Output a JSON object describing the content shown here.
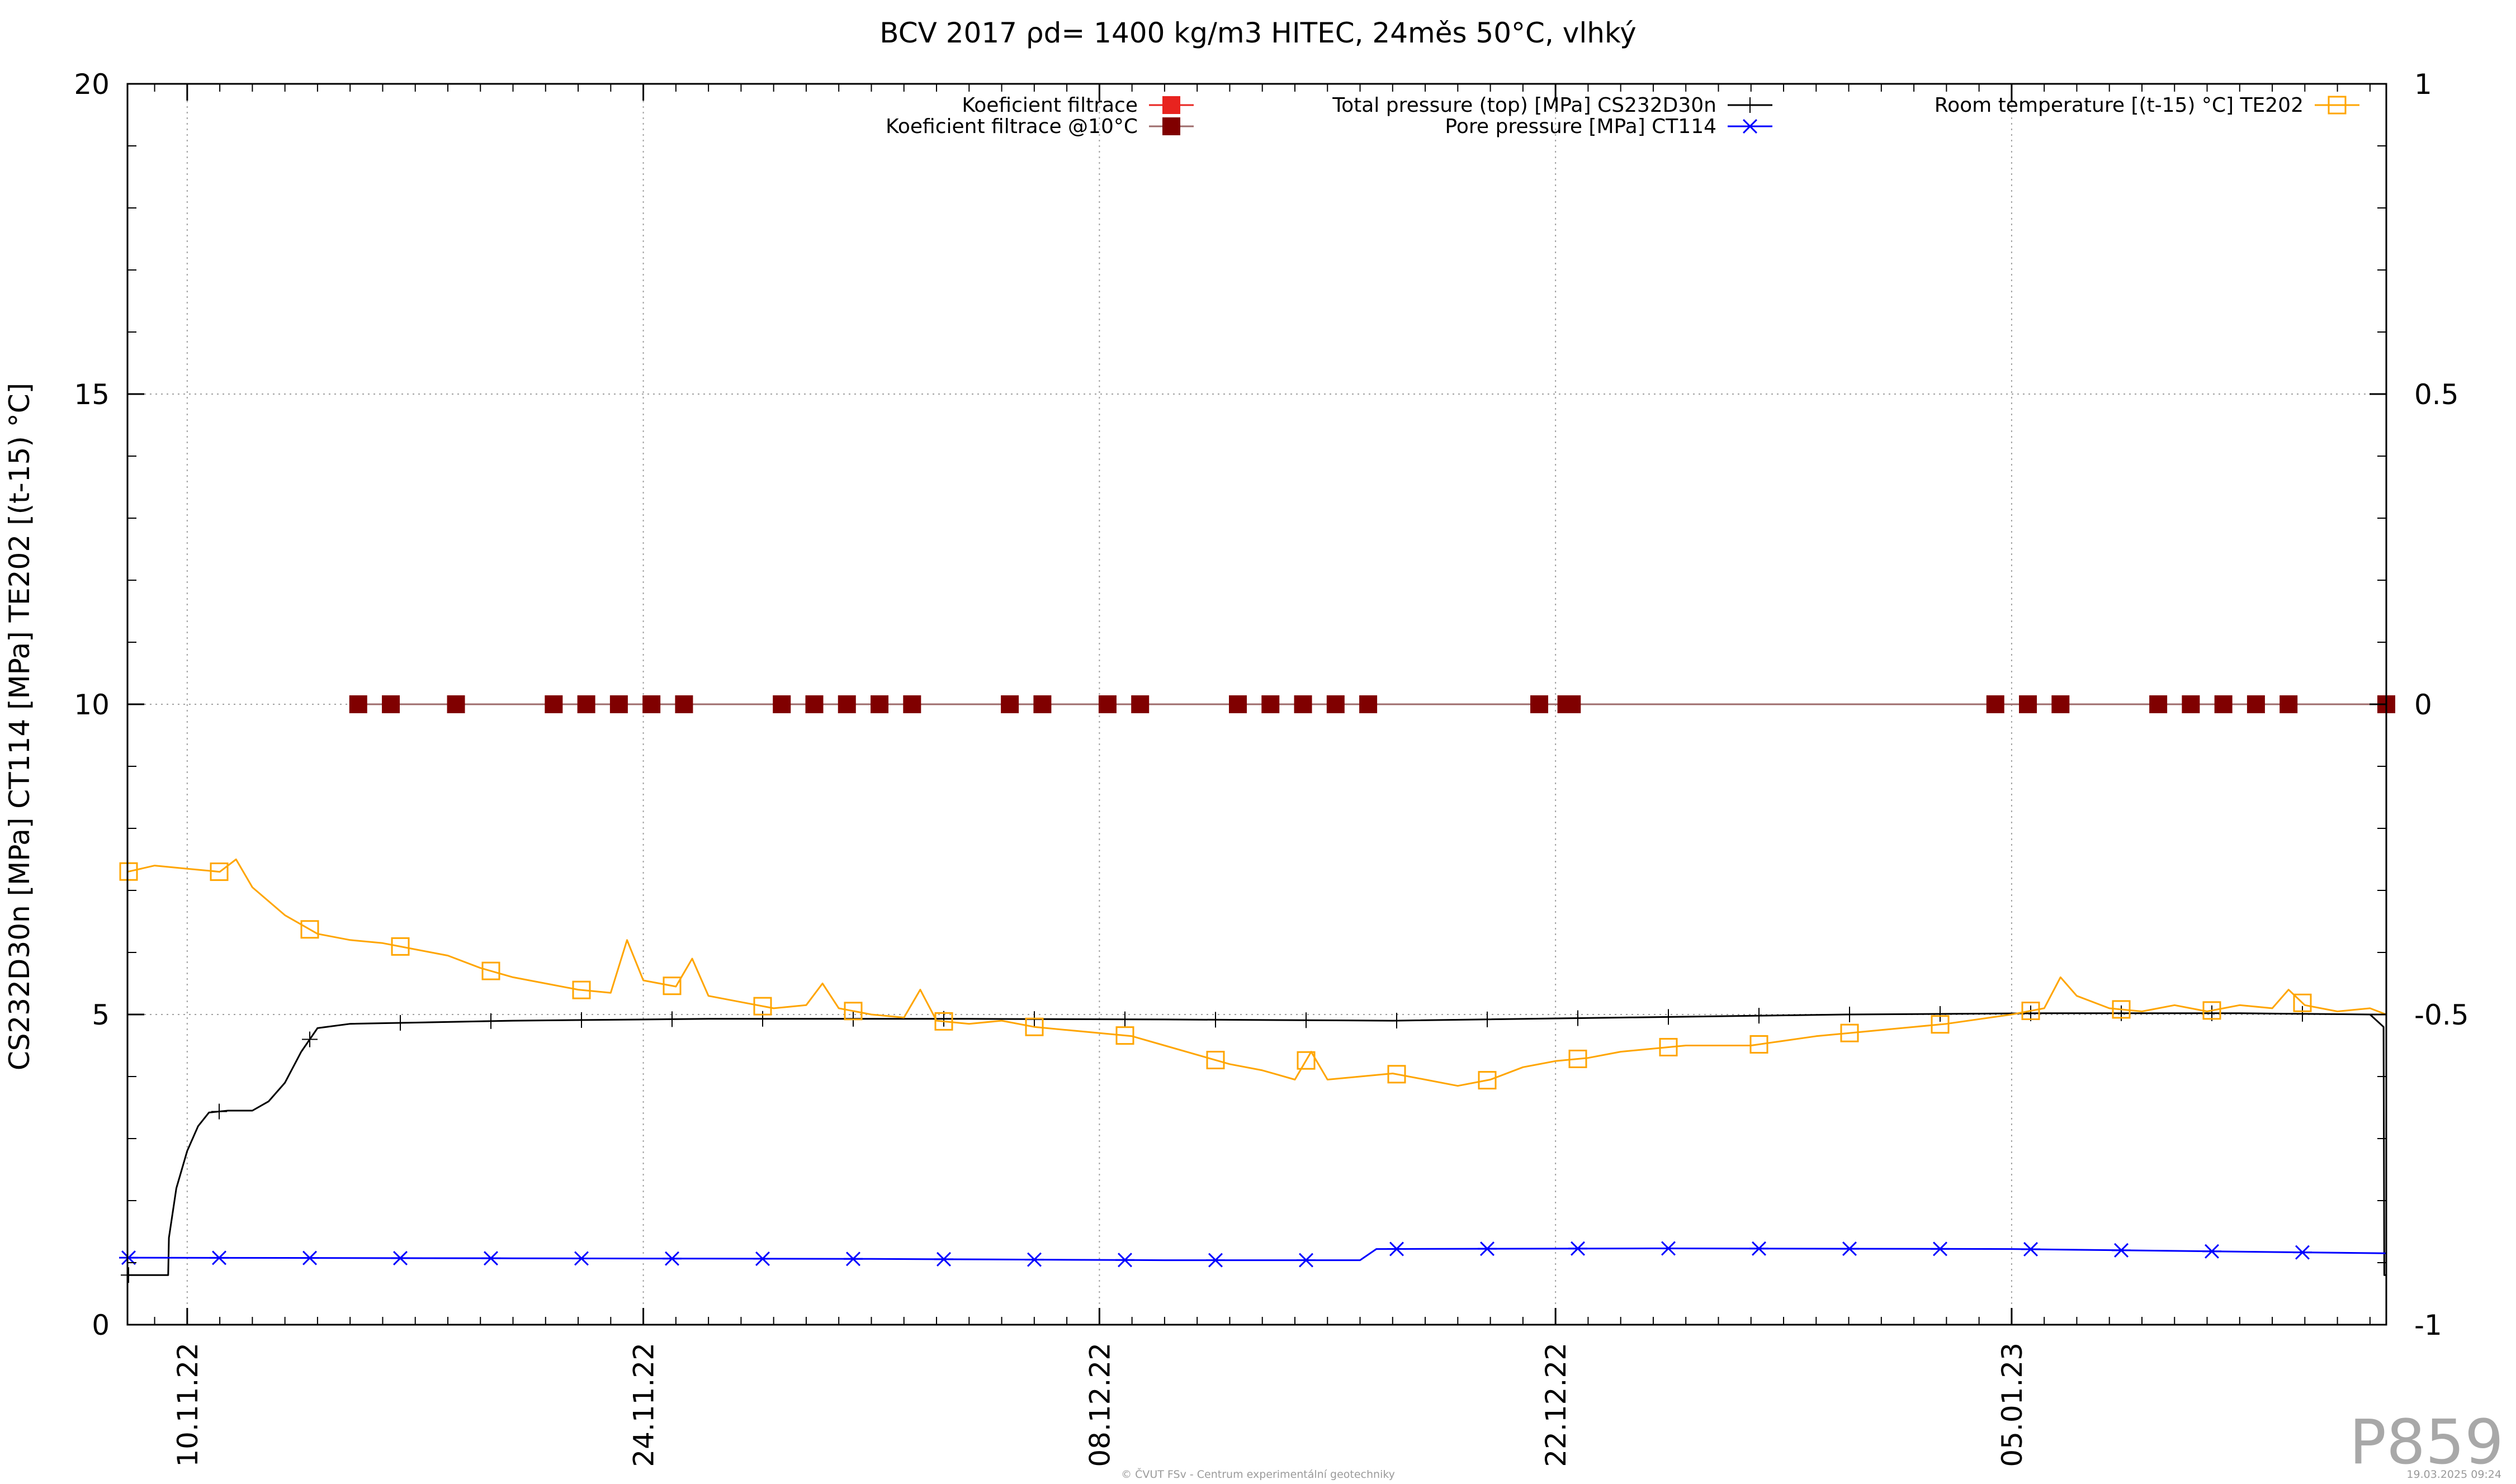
{
  "chart_data": {
    "type": "line",
    "title": "BCV 2017 ρd= 1400 kg/m3 HITEC, 24měs 50°C, vlhký",
    "ylabel": "CS232D30n [MPa] CT114 [MPa] TE202 [(t-15) °C]",
    "xlabel": "",
    "x_ticks": [
      "10.11.22",
      "24.11.22",
      "08.12.22",
      "22.12.22",
      "05.01.23"
    ],
    "x_range": [
      "2022-11-08T04:00",
      "2023-01-16T12:00"
    ],
    "ylim": [
      0,
      20
    ],
    "y2lim": [
      -1,
      1
    ],
    "yticks": [
      0,
      5,
      10,
      15,
      20
    ],
    "y2ticks": [
      "-1",
      "-0.5",
      "0",
      "0.5",
      "1"
    ],
    "grid": true,
    "legend_position": "top",
    "series": [
      {
        "name": "Koeficient filtrace",
        "axis": "y2",
        "style": "red-filled-square",
        "color": "#e8231f",
        "points": []
      },
      {
        "name": "Koeficient filtrace @10°C",
        "axis": "y2",
        "style": "darkred-filled-square",
        "color": "#800000",
        "points": [
          [
            "2022-11-15T06:00",
            0
          ],
          [
            "2022-11-16T06:00",
            0
          ],
          [
            "2022-11-18T06:00",
            0
          ],
          [
            "2022-11-21T06:00",
            0
          ],
          [
            "2022-11-22T06:00",
            0
          ],
          [
            "2022-11-23T06:00",
            0
          ],
          [
            "2022-11-24T06:00",
            0
          ],
          [
            "2022-11-25T06:00",
            0
          ],
          [
            "2022-11-28T06:00",
            0
          ],
          [
            "2022-11-29T06:00",
            0
          ],
          [
            "2022-11-30T06:00",
            0
          ],
          [
            "2022-12-01T06:00",
            0
          ],
          [
            "2022-12-02T06:00",
            0
          ],
          [
            "2022-12-05T06:00",
            0
          ],
          [
            "2022-12-06T06:00",
            0
          ],
          [
            "2022-12-08T06:00",
            0
          ],
          [
            "2022-12-09T06:00",
            0
          ],
          [
            "2022-12-12T06:00",
            0
          ],
          [
            "2022-12-13T06:00",
            0
          ],
          [
            "2022-12-14T06:00",
            0
          ],
          [
            "2022-12-15T06:00",
            0
          ],
          [
            "2022-12-16T06:00",
            0
          ],
          [
            "2022-12-21T12:00",
            0
          ],
          [
            "2022-12-22T08:00",
            0
          ],
          [
            "2022-12-22T12:00",
            0
          ],
          [
            "2023-01-04T12:00",
            0
          ],
          [
            "2023-01-05T12:00",
            0
          ],
          [
            "2023-01-06T12:00",
            0
          ],
          [
            "2023-01-09T12:00",
            0
          ],
          [
            "2023-01-10T12:00",
            0
          ],
          [
            "2023-01-11T12:00",
            0
          ],
          [
            "2023-01-12T12:00",
            0
          ],
          [
            "2023-01-13T12:00",
            0
          ],
          [
            "2023-01-16T12:00",
            0
          ]
        ]
      },
      {
        "name": "Total pressure (top) [MPa] CS232D30n",
        "axis": "y",
        "style": "black-line-plus",
        "color": "#000000",
        "points": [
          [
            "2022-11-08T04:00",
            0.8
          ],
          [
            "2022-11-09T10:00",
            0.8
          ],
          [
            "2022-11-09T10:30",
            1.4
          ],
          [
            "2022-11-09T16:00",
            2.2
          ],
          [
            "2022-11-10T00:00",
            2.8
          ],
          [
            "2022-11-10T08:00",
            3.2
          ],
          [
            "2022-11-10T16:00",
            3.42
          ],
          [
            "2022-11-11T06:00",
            3.45
          ],
          [
            "2022-11-12T00:00",
            3.45
          ],
          [
            "2022-11-12T12:00",
            3.6
          ],
          [
            "2022-11-13T00:00",
            3.9
          ],
          [
            "2022-11-13T12:00",
            4.4
          ],
          [
            "2022-11-14T00:00",
            4.78
          ],
          [
            "2022-11-15T00:00",
            4.85
          ],
          [
            "2022-11-20T00:00",
            4.9
          ],
          [
            "2022-11-26T00:00",
            4.93
          ],
          [
            "2022-12-04T00:00",
            4.93
          ],
          [
            "2022-12-10T00:00",
            4.92
          ],
          [
            "2022-12-17T00:00",
            4.9
          ],
          [
            "2022-12-24T00:00",
            4.95
          ],
          [
            "2022-12-31T00:00",
            5.0
          ],
          [
            "2023-01-06T00:00",
            5.02
          ],
          [
            "2023-01-12T00:00",
            5.02
          ],
          [
            "2023-01-16T00:00",
            5.0
          ],
          [
            "2023-01-16T10:00",
            4.8
          ],
          [
            "2023-01-16T10:30",
            0.8
          ],
          [
            "2023-01-16T12:00",
            0.8
          ]
        ]
      },
      {
        "name": "Pore pressure [MPa] CT114",
        "axis": "y",
        "style": "blue-line-asterisk",
        "color": "#0000ff",
        "points": [
          [
            "2022-11-08T04:00",
            1.08
          ],
          [
            "2022-11-20T00:00",
            1.07
          ],
          [
            "2022-12-01T00:00",
            1.06
          ],
          [
            "2022-12-10T00:00",
            1.04
          ],
          [
            "2022-12-16T00:00",
            1.04
          ],
          [
            "2022-12-16T12:00",
            1.22
          ],
          [
            "2022-12-25T00:00",
            1.23
          ],
          [
            "2023-01-05T00:00",
            1.22
          ],
          [
            "2023-01-16T12:00",
            1.15
          ]
        ]
      },
      {
        "name": "Room temperature [(t-15) °C] TE202",
        "axis": "y",
        "style": "orange-line-open-square",
        "color": "#ffa500",
        "points": [
          [
            "2022-11-08T04:00",
            7.3
          ],
          [
            "2022-11-09T00:00",
            7.4
          ],
          [
            "2022-11-10T00:00",
            7.35
          ],
          [
            "2022-11-11T00:00",
            7.3
          ],
          [
            "2022-11-11T12:00",
            7.5
          ],
          [
            "2022-11-12T00:00",
            7.05
          ],
          [
            "2022-11-13T00:00",
            6.6
          ],
          [
            "2022-11-14T00:00",
            6.3
          ],
          [
            "2022-11-15T00:00",
            6.2
          ],
          [
            "2022-11-16T00:00",
            6.15
          ],
          [
            "2022-11-17T00:00",
            6.05
          ],
          [
            "2022-11-18T00:00",
            5.95
          ],
          [
            "2022-11-19T00:00",
            5.75
          ],
          [
            "2022-11-20T00:00",
            5.6
          ],
          [
            "2022-11-21T00:00",
            5.5
          ],
          [
            "2022-11-22T00:00",
            5.4
          ],
          [
            "2022-11-23T00:00",
            5.35
          ],
          [
            "2022-11-23T12:00",
            6.2
          ],
          [
            "2022-11-24T00:00",
            5.55
          ],
          [
            "2022-11-25T00:00",
            5.45
          ],
          [
            "2022-11-25T12:00",
            5.9
          ],
          [
            "2022-11-26T00:00",
            5.3
          ],
          [
            "2022-11-27T00:00",
            5.2
          ],
          [
            "2022-11-28T00:00",
            5.1
          ],
          [
            "2022-11-29T00:00",
            5.15
          ],
          [
            "2022-11-29T12:00",
            5.5
          ],
          [
            "2022-11-30T00:00",
            5.1
          ],
          [
            "2022-12-01T00:00",
            5.0
          ],
          [
            "2022-12-02T00:00",
            4.95
          ],
          [
            "2022-12-02T12:00",
            5.4
          ],
          [
            "2022-12-03T00:00",
            4.9
          ],
          [
            "2022-12-04T00:00",
            4.85
          ],
          [
            "2022-12-05T00:00",
            4.9
          ],
          [
            "2022-12-06T00:00",
            4.8
          ],
          [
            "2022-12-07T00:00",
            4.75
          ],
          [
            "2022-12-08T00:00",
            4.7
          ],
          [
            "2022-12-09T00:00",
            4.65
          ],
          [
            "2022-12-10T00:00",
            4.5
          ],
          [
            "2022-12-11T00:00",
            4.35
          ],
          [
            "2022-12-12T00:00",
            4.2
          ],
          [
            "2022-12-13T00:00",
            4.1
          ],
          [
            "2022-12-14T00:00",
            3.95
          ],
          [
            "2022-12-14T12:00",
            4.4
          ],
          [
            "2022-12-15T00:00",
            3.95
          ],
          [
            "2022-12-16T00:00",
            4.0
          ],
          [
            "2022-12-17T00:00",
            4.05
          ],
          [
            "2022-12-18T00:00",
            3.95
          ],
          [
            "2022-12-19T00:00",
            3.85
          ],
          [
            "2022-12-20T00:00",
            3.95
          ],
          [
            "2022-12-21T00:00",
            4.15
          ],
          [
            "2022-12-22T00:00",
            4.25
          ],
          [
            "2022-12-23T00:00",
            4.3
          ],
          [
            "2022-12-24T00:00",
            4.4
          ],
          [
            "2022-12-26T00:00",
            4.5
          ],
          [
            "2022-12-28T00:00",
            4.5
          ],
          [
            "2022-12-30T00:00",
            4.65
          ],
          [
            "2023-01-01T00:00",
            4.75
          ],
          [
            "2023-01-03T00:00",
            4.85
          ],
          [
            "2023-01-05T00:00",
            5.0
          ],
          [
            "2023-01-06T00:00",
            5.1
          ],
          [
            "2023-01-06T12:00",
            5.6
          ],
          [
            "2023-01-07T00:00",
            5.3
          ],
          [
            "2023-01-08T00:00",
            5.1
          ],
          [
            "2023-01-09T00:00",
            5.05
          ],
          [
            "2023-01-10T00:00",
            5.15
          ],
          [
            "2023-01-11T00:00",
            5.05
          ],
          [
            "2023-01-12T00:00",
            5.15
          ],
          [
            "2023-01-13T00:00",
            5.1
          ],
          [
            "2023-01-13T12:00",
            5.4
          ],
          [
            "2023-01-14T00:00",
            5.15
          ],
          [
            "2023-01-15T00:00",
            5.05
          ],
          [
            "2023-01-16T00:00",
            5.1
          ],
          [
            "2023-01-16T12:00",
            5.0
          ]
        ]
      }
    ]
  },
  "watermark": "P859",
  "footer_credit": "© ČVUT FSv - Centrum experimentální geotechniky",
  "footer_timestamp": "19.03.2025 09:24"
}
